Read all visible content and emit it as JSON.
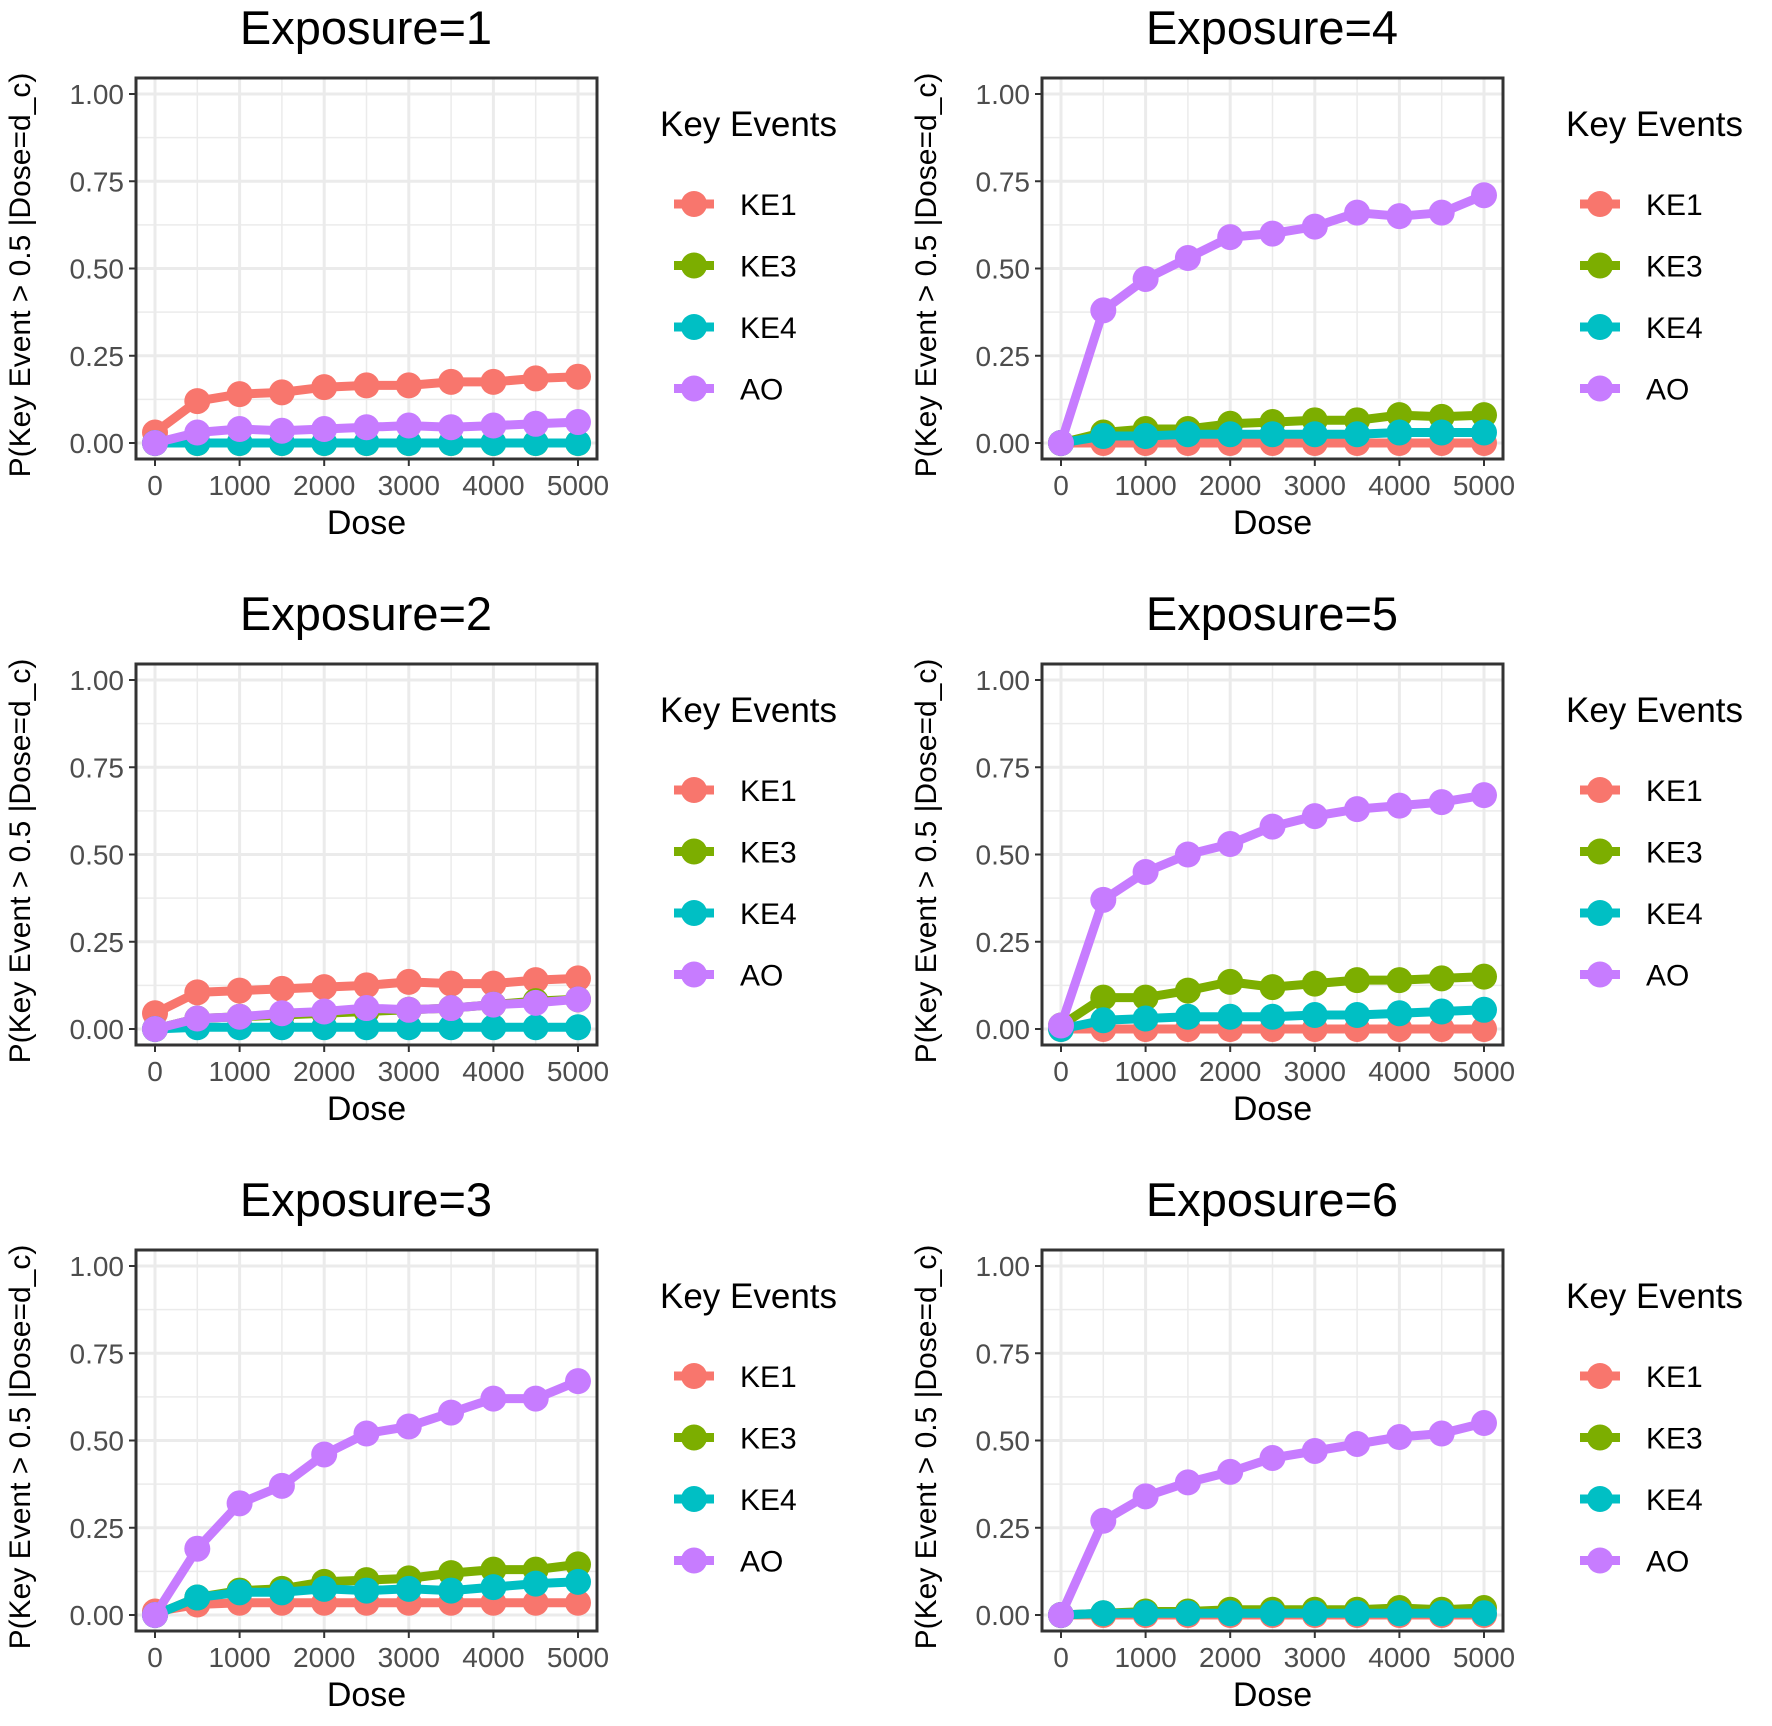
{
  "chart_data": [
    {
      "type": "line",
      "title": "Exposure=1",
      "xlabel": "Dose",
      "ylabel": "P(Key Event > 0.5 |Dose=d_c)",
      "xlim": [
        0,
        5000
      ],
      "ylim": [
        0,
        1
      ],
      "x_ticks": [
        "0",
        "1000",
        "2000",
        "3000",
        "4000",
        "5000"
      ],
      "y_ticks": [
        "0.00",
        "0.25",
        "0.50",
        "0.75",
        "1.00"
      ],
      "grid": true,
      "legend_title": "Key Events",
      "legend_position": "right",
      "x": [
        0,
        500,
        1000,
        1500,
        2000,
        2500,
        3000,
        3500,
        4000,
        4500,
        5000
      ],
      "series": [
        {
          "name": "KE1",
          "color": "#F8766D",
          "values": [
            0.03,
            0.12,
            0.14,
            0.145,
            0.16,
            0.165,
            0.165,
            0.175,
            0.175,
            0.185,
            0.19
          ]
        },
        {
          "name": "KE3",
          "color": "#7CAE00",
          "values": [
            0.0,
            0.0,
            0.0,
            0.0,
            0.0,
            0.0,
            0.0,
            0.0,
            0.0,
            0.0,
            0.0
          ]
        },
        {
          "name": "KE4",
          "color": "#00BFC4",
          "values": [
            0.0,
            0.0,
            0.0,
            0.0,
            0.0,
            0.0,
            0.0,
            0.0,
            0.0,
            0.0,
            0.0
          ]
        },
        {
          "name": "AO",
          "color": "#C77CFF",
          "values": [
            0.0,
            0.03,
            0.04,
            0.035,
            0.04,
            0.045,
            0.05,
            0.045,
            0.05,
            0.055,
            0.06
          ]
        }
      ]
    },
    {
      "type": "line",
      "title": "Exposure=4",
      "xlabel": "Dose",
      "ylabel": "P(Key Event > 0.5 |Dose=d_c)",
      "xlim": [
        0,
        5000
      ],
      "ylim": [
        0,
        1
      ],
      "x_ticks": [
        "0",
        "1000",
        "2000",
        "3000",
        "4000",
        "5000"
      ],
      "y_ticks": [
        "0.00",
        "0.25",
        "0.50",
        "0.75",
        "1.00"
      ],
      "grid": true,
      "legend_title": "Key Events",
      "legend_position": "right",
      "x": [
        0,
        500,
        1000,
        1500,
        2000,
        2500,
        3000,
        3500,
        4000,
        4500,
        5000
      ],
      "series": [
        {
          "name": "KE1",
          "color": "#F8766D",
          "values": [
            0.0,
            0.0,
            0.0,
            0.0,
            0.0,
            0.0,
            0.0,
            0.0,
            0.0,
            0.0,
            0.0
          ]
        },
        {
          "name": "KE3",
          "color": "#7CAE00",
          "values": [
            0.0,
            0.03,
            0.04,
            0.04,
            0.055,
            0.06,
            0.065,
            0.065,
            0.08,
            0.075,
            0.08
          ]
        },
        {
          "name": "KE4",
          "color": "#00BFC4",
          "values": [
            0.0,
            0.02,
            0.02,
            0.025,
            0.025,
            0.025,
            0.025,
            0.025,
            0.03,
            0.03,
            0.03
          ]
        },
        {
          "name": "AO",
          "color": "#C77CFF",
          "values": [
            0.0,
            0.38,
            0.47,
            0.53,
            0.59,
            0.6,
            0.62,
            0.66,
            0.65,
            0.66,
            0.71
          ]
        }
      ]
    },
    {
      "type": "line",
      "title": "Exposure=2",
      "xlabel": "Dose",
      "ylabel": "P(Key Event > 0.5 |Dose=d_c)",
      "xlim": [
        0,
        5000
      ],
      "ylim": [
        0,
        1
      ],
      "x_ticks": [
        "0",
        "1000",
        "2000",
        "3000",
        "4000",
        "5000"
      ],
      "y_ticks": [
        "0.00",
        "0.25",
        "0.50",
        "0.75",
        "1.00"
      ],
      "grid": true,
      "legend_title": "Key Events",
      "legend_position": "right",
      "x": [
        0,
        500,
        1000,
        1500,
        2000,
        2500,
        3000,
        3500,
        4000,
        4500,
        5000
      ],
      "series": [
        {
          "name": "KE1",
          "color": "#F8766D",
          "values": [
            0.045,
            0.105,
            0.11,
            0.115,
            0.12,
            0.125,
            0.135,
            0.13,
            0.13,
            0.14,
            0.145
          ]
        },
        {
          "name": "KE3",
          "color": "#7CAE00",
          "values": [
            0.0,
            0.03,
            0.035,
            0.04,
            0.045,
            0.05,
            0.055,
            0.06,
            0.07,
            0.08,
            0.085
          ]
        },
        {
          "name": "KE4",
          "color": "#00BFC4",
          "values": [
            0.0,
            0.005,
            0.005,
            0.005,
            0.005,
            0.005,
            0.005,
            0.005,
            0.005,
            0.005,
            0.005
          ]
        },
        {
          "name": "AO",
          "color": "#C77CFF",
          "values": [
            0.0,
            0.03,
            0.035,
            0.045,
            0.05,
            0.06,
            0.055,
            0.06,
            0.07,
            0.075,
            0.085
          ]
        }
      ]
    },
    {
      "type": "line",
      "title": "Exposure=5",
      "xlabel": "Dose",
      "ylabel": "P(Key Event > 0.5 |Dose=d_c)",
      "xlim": [
        0,
        5000
      ],
      "ylim": [
        0,
        1
      ],
      "x_ticks": [
        "0",
        "1000",
        "2000",
        "3000",
        "4000",
        "5000"
      ],
      "y_ticks": [
        "0.00",
        "0.25",
        "0.50",
        "0.75",
        "1.00"
      ],
      "grid": true,
      "legend_title": "Key Events",
      "legend_position": "right",
      "x": [
        0,
        500,
        1000,
        1500,
        2000,
        2500,
        3000,
        3500,
        4000,
        4500,
        5000
      ],
      "series": [
        {
          "name": "KE1",
          "color": "#F8766D",
          "values": [
            0.0,
            0.0,
            0.0,
            0.0,
            0.0,
            0.0,
            0.0,
            0.0,
            0.0,
            0.0,
            0.0
          ]
        },
        {
          "name": "KE3",
          "color": "#7CAE00",
          "values": [
            0.01,
            0.09,
            0.09,
            0.11,
            0.135,
            0.12,
            0.13,
            0.14,
            0.14,
            0.145,
            0.15
          ]
        },
        {
          "name": "KE4",
          "color": "#00BFC4",
          "values": [
            0.0,
            0.025,
            0.03,
            0.035,
            0.035,
            0.035,
            0.04,
            0.04,
            0.045,
            0.05,
            0.055
          ]
        },
        {
          "name": "AO",
          "color": "#C77CFF",
          "values": [
            0.01,
            0.37,
            0.45,
            0.5,
            0.53,
            0.58,
            0.61,
            0.63,
            0.64,
            0.65,
            0.67
          ]
        }
      ]
    },
    {
      "type": "line",
      "title": "Exposure=3",
      "xlabel": "Dose",
      "ylabel": "P(Key Event > 0.5 |Dose=d_c)",
      "xlim": [
        0,
        5000
      ],
      "ylim": [
        0,
        1
      ],
      "x_ticks": [
        "0",
        "1000",
        "2000",
        "3000",
        "4000",
        "5000"
      ],
      "y_ticks": [
        "0.00",
        "0.25",
        "0.50",
        "0.75",
        "1.00"
      ],
      "grid": true,
      "legend_title": "Key Events",
      "legend_position": "right",
      "x": [
        0,
        500,
        1000,
        1500,
        2000,
        2500,
        3000,
        3500,
        4000,
        4500,
        5000
      ],
      "series": [
        {
          "name": "KE1",
          "color": "#F8766D",
          "values": [
            0.01,
            0.03,
            0.035,
            0.035,
            0.035,
            0.035,
            0.035,
            0.035,
            0.035,
            0.035,
            0.035
          ]
        },
        {
          "name": "KE3",
          "color": "#7CAE00",
          "values": [
            0.0,
            0.05,
            0.07,
            0.075,
            0.095,
            0.1,
            0.105,
            0.12,
            0.13,
            0.13,
            0.145
          ]
        },
        {
          "name": "KE4",
          "color": "#00BFC4",
          "values": [
            0.0,
            0.05,
            0.065,
            0.065,
            0.075,
            0.07,
            0.075,
            0.07,
            0.08,
            0.09,
            0.095
          ]
        },
        {
          "name": "AO",
          "color": "#C77CFF",
          "values": [
            0.0,
            0.19,
            0.32,
            0.37,
            0.46,
            0.52,
            0.54,
            0.58,
            0.62,
            0.62,
            0.67
          ]
        }
      ]
    },
    {
      "type": "line",
      "title": "Exposure=6",
      "xlabel": "Dose",
      "ylabel": "P(Key Event > 0.5 |Dose=d_c)",
      "xlim": [
        0,
        5000
      ],
      "ylim": [
        0,
        1
      ],
      "x_ticks": [
        "0",
        "1000",
        "2000",
        "3000",
        "4000",
        "5000"
      ],
      "y_ticks": [
        "0.00",
        "0.25",
        "0.50",
        "0.75",
        "1.00"
      ],
      "grid": true,
      "legend_title": "Key Events",
      "legend_position": "right",
      "x": [
        0,
        500,
        1000,
        1500,
        2000,
        2500,
        3000,
        3500,
        4000,
        4500,
        5000
      ],
      "series": [
        {
          "name": "KE1",
          "color": "#F8766D",
          "values": [
            0.0,
            0.0,
            0.0,
            0.0,
            0.0,
            0.0,
            0.0,
            0.0,
            0.0,
            0.0,
            0.0
          ]
        },
        {
          "name": "KE3",
          "color": "#7CAE00",
          "values": [
            0.0,
            0.005,
            0.01,
            0.01,
            0.015,
            0.015,
            0.015,
            0.015,
            0.02,
            0.015,
            0.02
          ]
        },
        {
          "name": "KE4",
          "color": "#00BFC4",
          "values": [
            0.0,
            0.005,
            0.005,
            0.005,
            0.005,
            0.005,
            0.005,
            0.005,
            0.005,
            0.005,
            0.005
          ]
        },
        {
          "name": "AO",
          "color": "#C77CFF",
          "values": [
            0.0,
            0.27,
            0.34,
            0.38,
            0.41,
            0.45,
            0.47,
            0.49,
            0.51,
            0.52,
            0.55
          ]
        }
      ]
    }
  ]
}
